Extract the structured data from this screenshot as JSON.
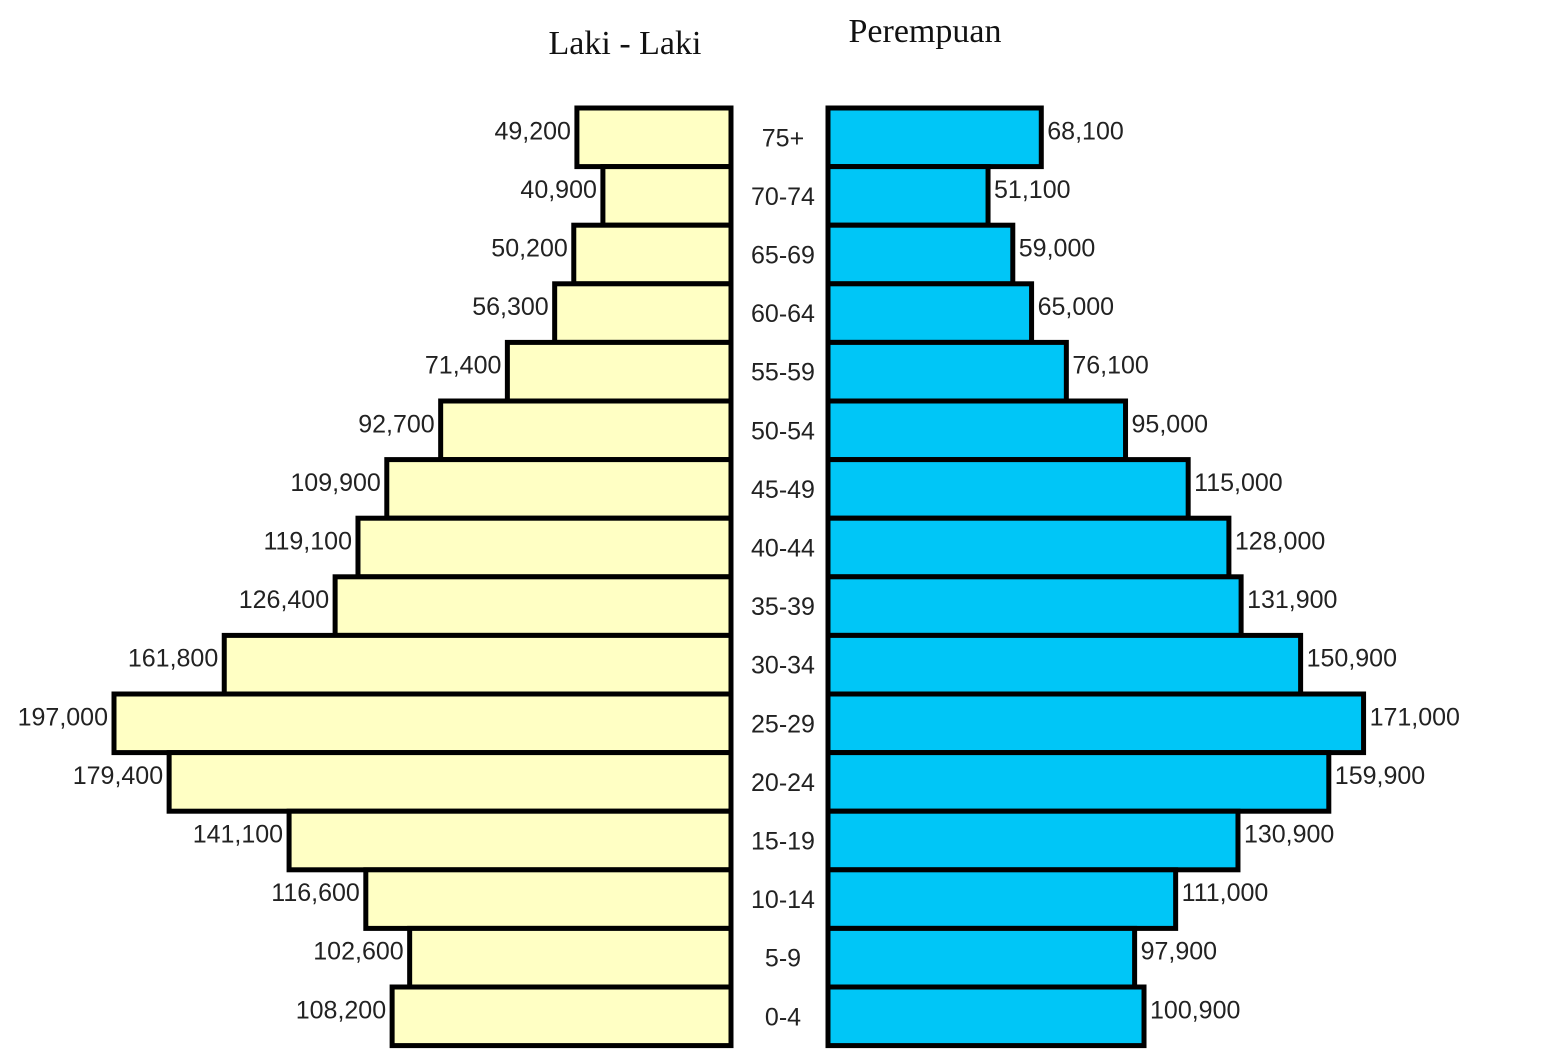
{
  "chart_data": {
    "type": "bar",
    "orientation": "horizontal",
    "layout": "population-pyramid",
    "categories": [
      "75+",
      "70-74",
      "65-69",
      "60-64",
      "55-59",
      "50-54",
      "45-49",
      "40-44",
      "35-39",
      "30-34",
      "25-29",
      "20-24",
      "15-19",
      "10-14",
      "5-9",
      "0-4"
    ],
    "series": [
      {
        "name": "Laki - Laki",
        "side": "left",
        "color": "#ffffc4",
        "values": [
          49200,
          40900,
          50200,
          56300,
          71400,
          92700,
          109900,
          119100,
          126400,
          161800,
          197000,
          179400,
          141100,
          116600,
          102600,
          108200
        ],
        "labels": [
          "49,200",
          "40,900",
          "50,200",
          "56,300",
          "71,400",
          "92,700",
          "109,900",
          "119,100",
          "126,400",
          "161,800",
          "197,000",
          "179,400",
          "141,100",
          "116,600",
          "102,600",
          "108,200"
        ]
      },
      {
        "name": "Perempuan",
        "side": "right",
        "color": "#00c6f7",
        "values": [
          68100,
          51100,
          59000,
          65000,
          76100,
          95000,
          115000,
          128000,
          131900,
          150900,
          171000,
          159900,
          130900,
          111000,
          97900,
          100900
        ],
        "labels": [
          "68,100",
          "51,100",
          "59,000",
          "65,000",
          "76,100",
          "95,000",
          "115,000",
          "128,000",
          "131,900",
          "150,900",
          "171,000",
          "159,900",
          "130,900",
          "111,000",
          "97,900",
          "100,900"
        ]
      }
    ],
    "title": "",
    "xlabel": "",
    "ylabel": "",
    "grid": false,
    "legend": "none"
  }
}
